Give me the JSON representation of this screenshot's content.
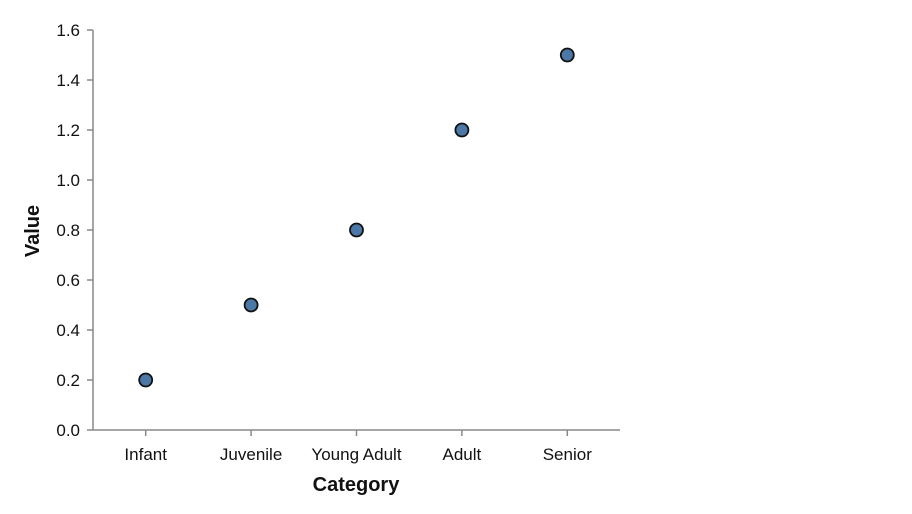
{
  "chart_data": {
    "type": "scatter",
    "categories": [
      "Infant",
      "Juvenile",
      "Young Adult",
      "Adult",
      "Senior"
    ],
    "values": [
      0.2,
      0.5,
      0.8,
      1.2,
      1.5
    ],
    "xlabel": "Category",
    "ylabel": "Value",
    "ylim": [
      0,
      1.6
    ],
    "yticks": [
      "0.0",
      "0.2",
      "0.4",
      "0.6",
      "0.8",
      "1.0",
      "1.2",
      "1.4",
      "1.6"
    ],
    "grid": false,
    "colors": {
      "point_fill": "#4c78a8",
      "point_stroke": "#111111"
    }
  }
}
